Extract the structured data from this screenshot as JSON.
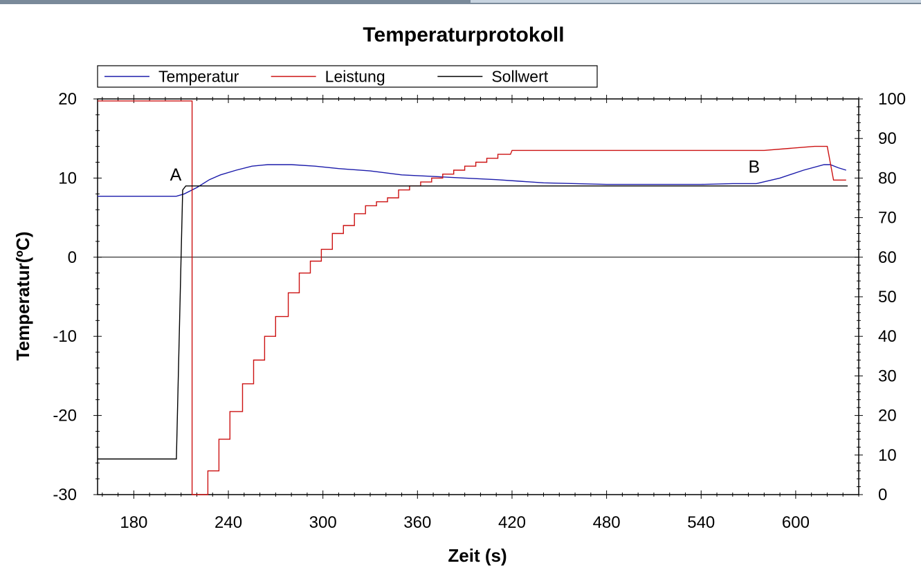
{
  "chart_data": {
    "type": "line",
    "title": "Temperaturprotokoll",
    "xlabel": "Zeit (s)",
    "ylabel": "Temperatur(ºC)",
    "y2label": "",
    "xlim": [
      157,
      640
    ],
    "ylim": [
      -30,
      20
    ],
    "y2lim": [
      0,
      100
    ],
    "xticks": [
      180,
      240,
      300,
      360,
      420,
      480,
      540,
      600
    ],
    "yticks": [
      -30,
      -20,
      -10,
      0,
      10,
      20
    ],
    "y2ticks": [
      0,
      10,
      20,
      30,
      40,
      50,
      60,
      70,
      80,
      90,
      100
    ],
    "zero_line": true,
    "grid": false,
    "legend_position": "top-left",
    "series": [
      {
        "name": "Temperatur",
        "color": "#1a1aaa",
        "axis": "left",
        "x": [
          157,
          207,
          212,
          220,
          228,
          235,
          245,
          255,
          265,
          280,
          295,
          310,
          330,
          350,
          370,
          390,
          410,
          425,
          440,
          460,
          480,
          500,
          520,
          540,
          560,
          575,
          590,
          605,
          618,
          622,
          627,
          632
        ],
        "y": [
          7.7,
          7.7,
          8.0,
          8.8,
          9.8,
          10.4,
          11.0,
          11.5,
          11.7,
          11.7,
          11.5,
          11.2,
          10.9,
          10.4,
          10.2,
          10.0,
          9.8,
          9.6,
          9.4,
          9.3,
          9.2,
          9.2,
          9.2,
          9.2,
          9.3,
          9.3,
          10.0,
          11.0,
          11.7,
          11.7,
          11.3,
          11.0
        ]
      },
      {
        "name": "Leistung",
        "color": "#cc1111",
        "axis": "right",
        "x": [
          157,
          204,
          211,
          216,
          217,
          217,
          227,
          227,
          234,
          234,
          241,
          241,
          249,
          249,
          256,
          256,
          263,
          263,
          270,
          270,
          278,
          278,
          285,
          285,
          292,
          292,
          299,
          299,
          306,
          306,
          313,
          313,
          320,
          320,
          327,
          327,
          334,
          334,
          341,
          341,
          348,
          348,
          355,
          355,
          362,
          362,
          369,
          369,
          376,
          376,
          383,
          383,
          390,
          390,
          397,
          397,
          404,
          404,
          411,
          411,
          419,
          420,
          580,
          612,
          620,
          624,
          632
        ],
        "y": [
          99.5,
          99.5,
          99.5,
          99.5,
          99.5,
          0,
          0,
          6,
          6,
          14,
          14,
          21,
          21,
          28,
          28,
          34,
          34,
          40,
          40,
          45,
          45,
          51,
          51,
          56,
          56,
          59,
          59,
          62,
          62,
          66,
          66,
          68,
          68,
          71,
          71,
          73,
          73,
          74,
          74,
          75,
          75,
          77,
          77,
          78,
          78,
          79,
          79,
          80,
          80,
          81,
          81,
          82,
          82,
          83,
          83,
          84,
          84,
          85,
          85,
          86,
          86,
          87,
          87,
          88,
          88,
          79.5,
          79.5
        ]
      },
      {
        "name": "Sollwert",
        "color": "#000000",
        "axis": "left",
        "x": [
          157,
          207,
          210,
          211,
          213,
          633
        ],
        "y": [
          -25.5,
          -25.5,
          0,
          8.5,
          9.0,
          9.0
        ]
      }
    ],
    "annotations": [
      {
        "text": "A",
        "x": 211,
        "y": 9.5
      },
      {
        "text": "B",
        "x": 578,
        "y": 10.5
      }
    ]
  }
}
